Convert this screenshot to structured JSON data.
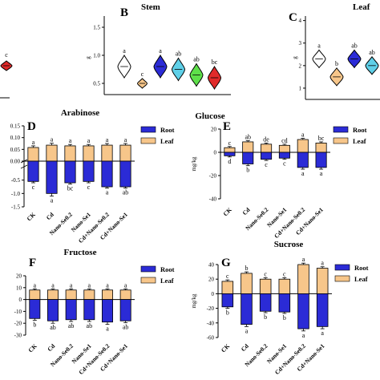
{
  "colors": {
    "root": "#2b2bd6",
    "leaf": "#f7c68a",
    "red_violin": "#e02a2a",
    "ink": "#000000"
  },
  "legend": {
    "root": "Root",
    "leaf": "Leaf"
  },
  "chart_data": [
    {
      "panel": "A (partial)",
      "type": "violin",
      "title": "",
      "sig": [
        "c"
      ],
      "values": [
        0.6
      ]
    },
    {
      "panel": "B",
      "type": "violin",
      "title": "Stem",
      "ylabel": "g",
      "yticks": [
        "0.5",
        "1.0",
        "1.5"
      ],
      "ylim": [
        0.3,
        1.7
      ],
      "sig": [
        "a",
        "c",
        "a",
        "ab",
        "ab",
        "bc"
      ],
      "medians": [
        0.8,
        0.5,
        0.8,
        0.75,
        0.65,
        0.6
      ],
      "fill_colors": [
        "#ffffff",
        "#f7c68a",
        "#2b2bd6",
        "#5fd0e8",
        "#5ee04a",
        "#e02a2a"
      ]
    },
    {
      "panel": "C",
      "type": "violin",
      "title": "Leaf",
      "ylabel": "g",
      "yticks": [
        "1",
        "2",
        "3",
        "4"
      ],
      "ylim": [
        0.5,
        4.2
      ],
      "sig": [
        "a",
        "b",
        "ab",
        "ab"
      ],
      "medians": [
        2.3,
        1.5,
        2.3,
        2.0
      ],
      "fill_colors": [
        "#ffffff",
        "#f7c68a",
        "#2b2bd6",
        "#5fd0e8"
      ]
    },
    {
      "panel": "D",
      "type": "bar",
      "title": "Arabinose",
      "ylabel": "",
      "ylim": [
        -1.5,
        0.15
      ],
      "categories": [
        "CK",
        "Cd",
        "Nano-Se0.2",
        "Nano-Se1",
        "Cd+Nano-Se0.2",
        "Cd+Nano-Se1"
      ],
      "split": {
        "top": {
          "range": [
            0,
            0.15
          ],
          "ticks": [
            0.0,
            0.05,
            0.1,
            0.15
          ],
          "labels": [
            "0.00",
            "0.05",
            "0.10",
            "0.15"
          ]
        },
        "bottom": {
          "range": [
            -1.5,
            0
          ],
          "ticks": [
            -1.5,
            -1.0,
            -0.5
          ],
          "labels": [
            "-1.5",
            "-1.0",
            "-0.5"
          ]
        }
      },
      "series": [
        {
          "name": "Leaf",
          "values": [
            0.058,
            0.068,
            0.065,
            0.065,
            0.068,
            0.068
          ],
          "err": [
            0.007,
            0.008,
            0.006,
            0.006,
            0.007,
            0.007
          ],
          "sig": [
            "a",
            "a",
            "a",
            "a",
            "a",
            "a"
          ]
        },
        {
          "name": "Root",
          "values": [
            -0.55,
            -1.0,
            -0.6,
            -0.55,
            -0.75,
            -0.75
          ],
          "err": [
            0.05,
            0.1,
            0.05,
            0.05,
            0.05,
            0.05
          ],
          "sig": [
            "c",
            "a",
            "bc",
            "c",
            "a",
            "ab"
          ]
        }
      ]
    },
    {
      "panel": "E",
      "type": "bar",
      "title": "Glucose",
      "ylabel": "mg/kg",
      "ylim": [
        -40,
        20
      ],
      "yticks": [
        -40,
        -20,
        0,
        20
      ],
      "categories": [
        "CK",
        "Cd",
        "Nano-Se0.2",
        "Nano-Se1",
        "Cd+Nano-Se0.2",
        "Cd+Nano-Se1"
      ],
      "series": [
        {
          "name": "Leaf",
          "values": [
            4,
            9,
            7,
            6,
            11,
            8
          ],
          "err": [
            1,
            1,
            1,
            1,
            1,
            1
          ],
          "sig": [
            "c",
            "ab",
            "de",
            "cd",
            "a",
            "bc"
          ]
        },
        {
          "name": "Root",
          "values": [
            -3,
            -10,
            -6,
            -5,
            -13,
            -13
          ],
          "err": [
            1,
            1.5,
            1,
            1,
            1.5,
            1.5
          ],
          "sig": [
            "d",
            "b",
            "c",
            "c",
            "a",
            "a"
          ]
        }
      ]
    },
    {
      "panel": "F",
      "type": "bar",
      "title": "Fructose",
      "ylabel": "",
      "ylim": [
        -30,
        20
      ],
      "yticks": [
        -30,
        -20,
        -10,
        0,
        10,
        20
      ],
      "categories": [
        "CK",
        "Cd",
        "Nano-Se0.2",
        "Nano-Se1",
        "Cd+Nano-Se0.2",
        "Cd+Nano-Se1"
      ],
      "series": [
        {
          "name": "Leaf",
          "values": [
            8,
            8,
            8,
            8,
            8,
            8
          ],
          "err": [
            1,
            1,
            1,
            1,
            1,
            1
          ],
          "sig": [
            "a",
            "a",
            "a",
            "a",
            "a",
            "a"
          ]
        },
        {
          "name": "Root",
          "values": [
            -16,
            -18,
            -17,
            -17,
            -19,
            -18
          ],
          "err": [
            1.5,
            2,
            1.5,
            1.5,
            2,
            1.5
          ],
          "sig": [
            "b",
            "ab",
            "ab",
            "ab",
            "a",
            "ab"
          ]
        }
      ]
    },
    {
      "panel": "G",
      "type": "bar",
      "title": "Sucrose",
      "ylabel": "mg/kg",
      "ylim": [
        -60,
        40
      ],
      "yticks": [
        -60,
        -40,
        -20,
        0,
        20,
        40
      ],
      "categories": [
        "CK",
        "Cd",
        "Nano-Se0.2",
        "Nano-Se1",
        "Cd+Nano-Se0.2",
        "Cd+Nano-Se1"
      ],
      "series": [
        {
          "name": "Leaf",
          "values": [
            17,
            28,
            20,
            20,
            40,
            35
          ],
          "err": [
            2,
            2,
            2,
            2,
            2,
            2
          ],
          "sig": [
            "c",
            "b",
            "c",
            "c",
            "a",
            "a"
          ]
        },
        {
          "name": "Root",
          "values": [
            -18,
            -42,
            -24,
            -25,
            -48,
            -45
          ],
          "err": [
            2,
            3,
            2,
            2,
            3,
            3
          ],
          "sig": [
            "b",
            "a",
            "b",
            "b",
            "a",
            "a"
          ]
        }
      ]
    }
  ]
}
